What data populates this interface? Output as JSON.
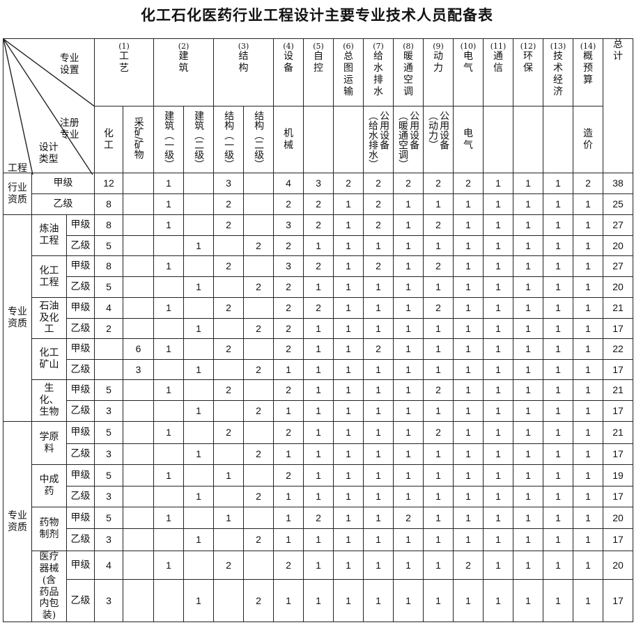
{
  "title": "化工石化医药行业工程设计主要专业技术人员配备表",
  "corner": {
    "top": "专业设置",
    "middle": "注册专业",
    "lower": "设计类型",
    "bottom": "工程"
  },
  "header_row1": [
    {
      "no": "(1)",
      "label": "工艺",
      "span": 2
    },
    {
      "no": "(2)",
      "label": "建筑",
      "span": 2
    },
    {
      "no": "(3)",
      "label": "结构",
      "span": 2
    },
    {
      "no": "(4)",
      "label": "设备"
    },
    {
      "no": "(5)",
      "label": "自控"
    },
    {
      "no": "(6)",
      "label": "总图运输"
    },
    {
      "no": "(7)",
      "label": "给水排水"
    },
    {
      "no": "(8)",
      "label": "暖通空调"
    },
    {
      "no": "(9)",
      "label": "动力"
    },
    {
      "no": "(10)",
      "label": "电气"
    },
    {
      "no": "(11)",
      "label": "通信"
    },
    {
      "no": "(12)",
      "label": "环保"
    },
    {
      "no": "(13)",
      "label": "技术经济"
    },
    {
      "no": "(14)",
      "label": "概预算"
    }
  ],
  "total_label": "总计",
  "header_row2": [
    "化工",
    "采矿/矿物",
    "建筑（一级）",
    "建筑（二级）",
    "结构（一级）",
    "结构（二级）",
    "机械",
    "",
    "",
    "公用设备（给水排水）",
    "公用设备（暖通空调）",
    "公用设备（动力）",
    "电气",
    "",
    "",
    "",
    "造价"
  ],
  "groups": [
    {
      "label": "行业资质",
      "subgroups": [
        {
          "label": "",
          "rows": [
            {
              "grade": "甲级",
              "values": [
                "12",
                "",
                "1",
                "",
                "3",
                "",
                "4",
                "3",
                "2",
                "2",
                "2",
                "2",
                "2",
                "1",
                "1",
                "1",
                "2",
                "38"
              ]
            },
            {
              "grade": "乙级",
              "values": [
                "8",
                "",
                "1",
                "",
                "2",
                "",
                "2",
                "2",
                "1",
                "2",
                "1",
                "1",
                "1",
                "1",
                "1",
                "1",
                "1",
                "25"
              ]
            }
          ]
        }
      ]
    },
    {
      "label": "专业资质",
      "subgroups": [
        {
          "label": "炼油工程",
          "rows": [
            {
              "grade": "甲级",
              "values": [
                "8",
                "",
                "1",
                "",
                "2",
                "",
                "3",
                "2",
                "1",
                "2",
                "1",
                "2",
                "1",
                "1",
                "1",
                "1",
                "1",
                "27"
              ]
            },
            {
              "grade": "乙级",
              "values": [
                "5",
                "",
                "",
                "1",
                "",
                "2",
                "2",
                "1",
                "1",
                "1",
                "1",
                "1",
                "1",
                "1",
                "1",
                "1",
                "1",
                "20"
              ]
            }
          ]
        },
        {
          "label": "化工工程",
          "rows": [
            {
              "grade": "甲级",
              "values": [
                "8",
                "",
                "1",
                "",
                "2",
                "",
                "3",
                "2",
                "1",
                "2",
                "1",
                "2",
                "1",
                "1",
                "1",
                "1",
                "1",
                "27"
              ]
            },
            {
              "grade": "乙级",
              "values": [
                "5",
                "",
                "",
                "1",
                "",
                "2",
                "2",
                "1",
                "1",
                "1",
                "1",
                "1",
                "1",
                "1",
                "1",
                "1",
                "1",
                "20"
              ]
            }
          ]
        },
        {
          "label": "石油及化工",
          "rows": [
            {
              "grade": "甲级",
              "values": [
                "4",
                "",
                "1",
                "",
                "2",
                "",
                "2",
                "2",
                "1",
                "1",
                "1",
                "2",
                "1",
                "1",
                "1",
                "1",
                "1",
                "21"
              ]
            },
            {
              "grade": "乙级",
              "values": [
                "2",
                "",
                "",
                "1",
                "",
                "2",
                "2",
                "1",
                "1",
                "1",
                "1",
                "1",
                "1",
                "1",
                "1",
                "1",
                "1",
                "17"
              ]
            }
          ]
        },
        {
          "label": "化工矿山",
          "rows": [
            {
              "grade": "甲级",
              "values": [
                "",
                "6",
                "1",
                "",
                "2",
                "",
                "2",
                "1",
                "1",
                "2",
                "1",
                "1",
                "1",
                "1",
                "1",
                "1",
                "1",
                "22"
              ]
            },
            {
              "grade": "乙级",
              "values": [
                "",
                "3",
                "",
                "1",
                "",
                "2",
                "1",
                "1",
                "1",
                "1",
                "1",
                "1",
                "1",
                "1",
                "1",
                "1",
                "1",
                "17"
              ]
            }
          ]
        },
        {
          "label": "生化、生物",
          "rows": [
            {
              "grade": "甲级",
              "values": [
                "5",
                "",
                "1",
                "",
                "2",
                "",
                "2",
                "1",
                "1",
                "1",
                "1",
                "2",
                "1",
                "1",
                "1",
                "1",
                "1",
                "21"
              ]
            },
            {
              "grade": "乙级",
              "values": [
                "3",
                "",
                "",
                "1",
                "",
                "2",
                "1",
                "1",
                "1",
                "1",
                "1",
                "1",
                "1",
                "1",
                "1",
                "1",
                "1",
                "17"
              ]
            }
          ]
        }
      ]
    },
    {
      "label": "专业资质",
      "subgroups": [
        {
          "label": "学原料",
          "rows": [
            {
              "grade": "甲级",
              "values": [
                "5",
                "",
                "1",
                "",
                "2",
                "",
                "2",
                "1",
                "1",
                "1",
                "1",
                "2",
                "1",
                "1",
                "1",
                "1",
                "1",
                "21"
              ]
            },
            {
              "grade": "乙级",
              "values": [
                "3",
                "",
                "",
                "1",
                "",
                "2",
                "1",
                "1",
                "1",
                "1",
                "1",
                "1",
                "1",
                "1",
                "1",
                "1",
                "1",
                "17"
              ]
            }
          ]
        },
        {
          "label": "中成药",
          "rows": [
            {
              "grade": "甲级",
              "values": [
                "5",
                "",
                "1",
                "",
                "1",
                "",
                "2",
                "1",
                "1",
                "1",
                "1",
                "1",
                "1",
                "1",
                "1",
                "1",
                "1",
                "19"
              ]
            },
            {
              "grade": "乙级",
              "values": [
                "3",
                "",
                "",
                "1",
                "",
                "2",
                "1",
                "1",
                "1",
                "1",
                "1",
                "1",
                "1",
                "1",
                "1",
                "1",
                "1",
                "17"
              ]
            }
          ]
        },
        {
          "label": "药物制剂",
          "rows": [
            {
              "grade": "甲级",
              "values": [
                "5",
                "",
                "1",
                "",
                "1",
                "",
                "1",
                "2",
                "1",
                "1",
                "2",
                "1",
                "1",
                "1",
                "1",
                "1",
                "1",
                "20"
              ]
            },
            {
              "grade": "乙级",
              "values": [
                "3",
                "",
                "",
                "1",
                "",
                "2",
                "1",
                "1",
                "1",
                "1",
                "1",
                "1",
                "1",
                "1",
                "1",
                "1",
                "1",
                "17"
              ]
            }
          ]
        },
        {
          "label": "医疗器械(含药品内包装)",
          "rows": [
            {
              "grade": "甲级",
              "values": [
                "4",
                "",
                "1",
                "",
                "2",
                "",
                "2",
                "1",
                "1",
                "1",
                "1",
                "1",
                "2",
                "1",
                "1",
                "1",
                "1",
                "20"
              ]
            },
            {
              "grade": "乙级",
              "values": [
                "3",
                "",
                "",
                "1",
                "",
                "2",
                "1",
                "1",
                "1",
                "1",
                "1",
                "1",
                "1",
                "1",
                "1",
                "1",
                "1",
                "17"
              ]
            }
          ]
        }
      ]
    }
  ]
}
